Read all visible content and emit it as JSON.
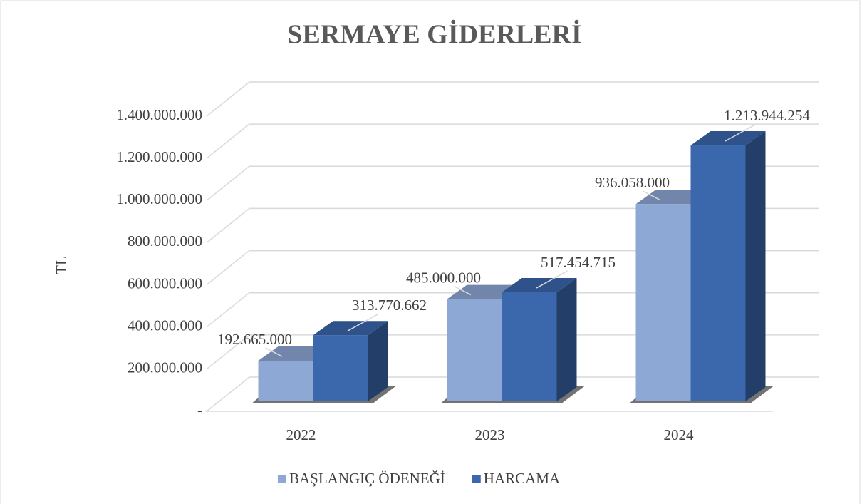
{
  "chart_data": {
    "type": "bar3d",
    "title": "SERMAYE GİDERLERİ",
    "y_label": "TL",
    "categories": [
      "2022",
      "2023",
      "2024"
    ],
    "series": [
      {
        "name": "BAŞLANGIÇ ÖDENEĞİ",
        "color": "#8ea8d6",
        "values": [
          192665000,
          485000000,
          936058000
        ],
        "value_labels": [
          "192.665.000",
          "485.000.000",
          "936.058.000"
        ]
      },
      {
        "name": "HARCAMA",
        "color": "#3b67ad",
        "values": [
          313770662,
          517454715,
          1213944254
        ],
        "value_labels": [
          "313.770.662",
          "517.454.715",
          "1.213.944.254"
        ]
      }
    ],
    "ylim": [
      0,
      1400000000
    ],
    "yticks": [
      {
        "value": 0,
        "label": "-"
      },
      {
        "value": 200000000,
        "label": "200.000.000"
      },
      {
        "value": 400000000,
        "label": "400.000.000"
      },
      {
        "value": 600000000,
        "label": "600.000.000"
      },
      {
        "value": 800000000,
        "label": "800.000.000"
      },
      {
        "value": 1000000000,
        "label": "1.000.000.000"
      },
      {
        "value": 1200000000,
        "label": "1.200.000.000"
      },
      {
        "value": 1400000000,
        "label": "1.400.000.000"
      }
    ],
    "grid": true,
    "legend": "bottom"
  }
}
